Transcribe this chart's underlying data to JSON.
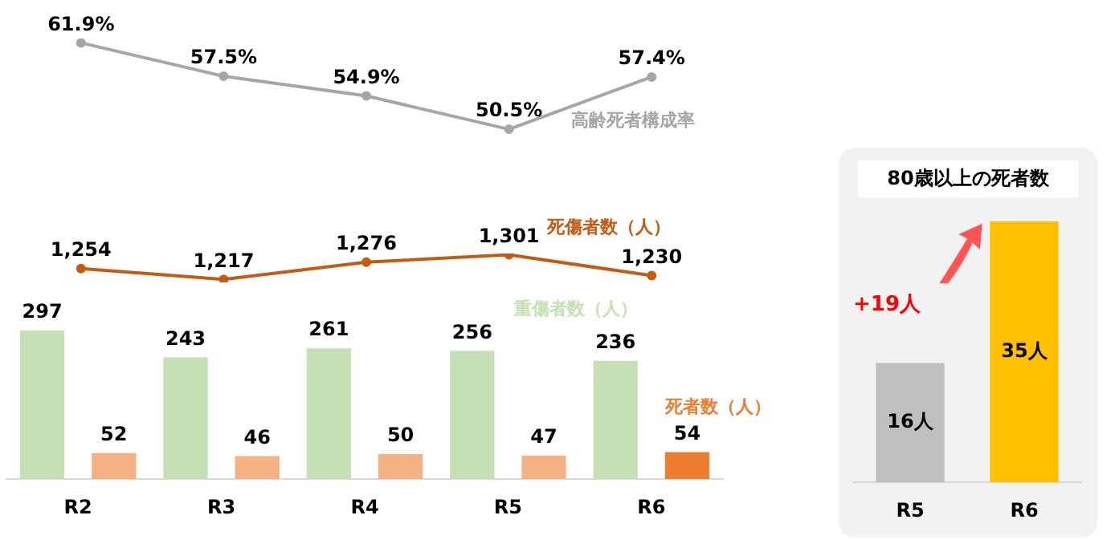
{
  "chart_data": [
    {
      "type": "line",
      "categories": [
        null,
        null,
        null,
        null,
        null
      ],
      "legend": false,
      "grid": false,
      "marker": "circle",
      "series": [
        {
          "name": "高齢死者構成率",
          "color": "#a6a6a6",
          "values": [
            61.9,
            57.5,
            54.9,
            50.5,
            57.4
          ],
          "value_labels": [
            "61.9%",
            "57.5%",
            "54.9%",
            "50.5%",
            "57.4%"
          ]
        }
      ]
    },
    {
      "type": "line",
      "categories": [
        null,
        null,
        null,
        null,
        null
      ],
      "legend": false,
      "grid": false,
      "marker": "circle",
      "series": [
        {
          "name": "死傷者数（人）",
          "color": "#c55a11",
          "values": [
            1254,
            1217,
            1276,
            1301,
            1230
          ],
          "value_labels": [
            "1,254",
            "1,217",
            "1,276",
            "1,301",
            "1,230"
          ]
        }
      ]
    },
    {
      "type": "bar",
      "categories": [
        "R2",
        "R3",
        "R4",
        "R5",
        "R6"
      ],
      "legend": false,
      "grid": false,
      "series": [
        {
          "name": "重傷者数（人）",
          "color": "#c5e0b4",
          "values": [
            297,
            243,
            261,
            256,
            236
          ],
          "value_labels": [
            "297",
            "243",
            "261",
            "256",
            "236"
          ]
        },
        {
          "name": "死者数（人）",
          "color": "#ed7d31",
          "colors": [
            "#f4b183",
            "#f4b183",
            "#f4b183",
            "#f4b183",
            "#ed7d31"
          ],
          "values": [
            52,
            46,
            50,
            47,
            54
          ],
          "value_labels": [
            "52",
            "46",
            "50",
            "47",
            "54"
          ]
        }
      ]
    },
    {
      "type": "bar",
      "title": "80歳以上の死者数",
      "categories": [
        "R5",
        "R6"
      ],
      "values": [
        16,
        35
      ],
      "colors": [
        "#bfbfbf",
        "#ffc000"
      ],
      "value_labels": [
        "16人",
        "35人"
      ],
      "legend": false,
      "grid": false,
      "annotations": [
        "+19人"
      ]
    }
  ]
}
